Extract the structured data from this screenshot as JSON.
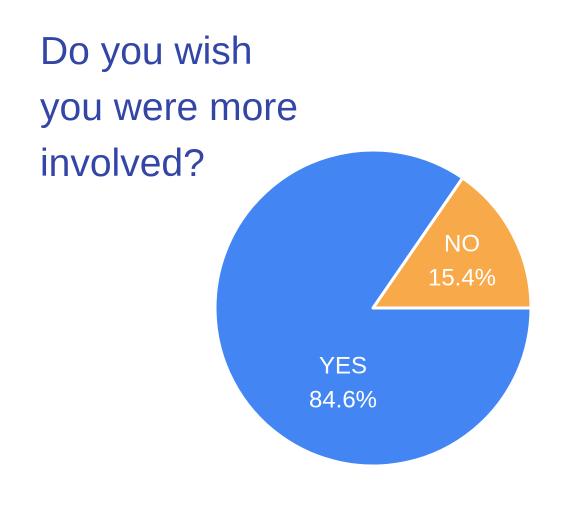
{
  "chart_data": {
    "type": "pie",
    "title": [
      "Do you wish",
      "you were more",
      "involved?"
    ],
    "categories": [
      "NO",
      "YES"
    ],
    "values": [
      15.4,
      84.6
    ],
    "value_labels": [
      "15.4%",
      "84.6%"
    ],
    "colors": [
      "#f8a94a",
      "#4386f3"
    ]
  }
}
